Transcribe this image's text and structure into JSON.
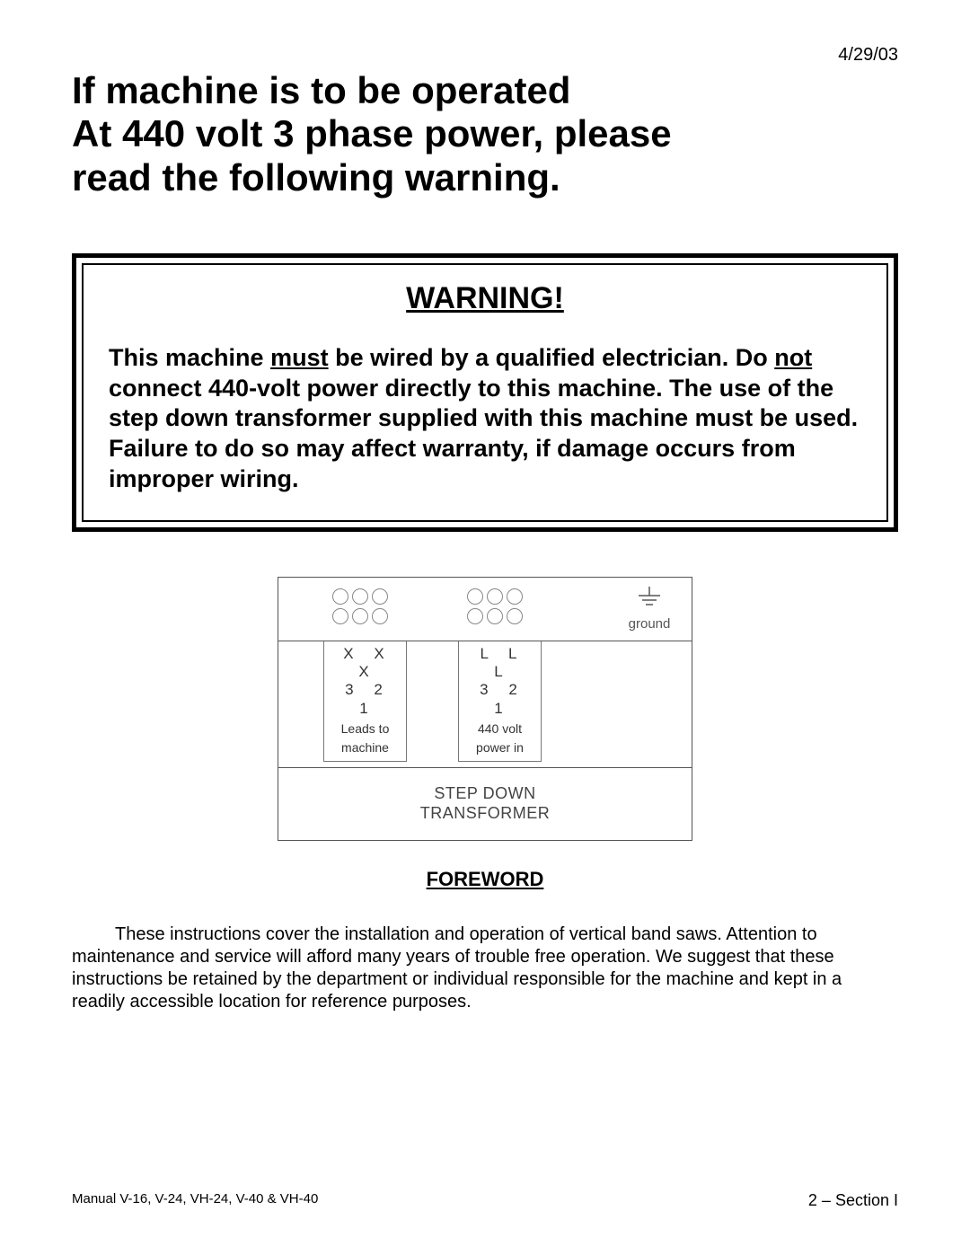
{
  "date": "4/29/03",
  "headline": {
    "line1": "If machine is to be operated",
    "line2": "At 440 volt 3 phase power, please",
    "line3": "read the following warning."
  },
  "warning": {
    "title": "WARNING!",
    "body_html": "This machine <u>must</u> be wired by a qualified electrician.  Do <u>not</u> connect 440-volt power directly to this machine.  The use of the step down transformer supplied with this machine must be used.  Failure to do so may affect warranty, if damage occurs from improper wiring."
  },
  "diagram": {
    "ground_label": "ground",
    "left_block": {
      "row1": "X  X  X",
      "row2": "3  2  1",
      "caption1": "Leads to",
      "caption2": "machine"
    },
    "right_block": {
      "row1": "L  L  L",
      "row2": "3  2  1",
      "caption1": "440 volt",
      "caption2": "power in"
    },
    "footer1": "STEP DOWN",
    "footer2": "TRANSFORMER",
    "colors": {
      "border": "#555555",
      "circle": "#888888",
      "text": "#444444"
    }
  },
  "foreword": {
    "title": "FOREWORD",
    "body": "These instructions cover the installation and operation of vertical band saws. Attention to maintenance and service will afford many years of trouble free operation.  We suggest that these instructions be retained by the department or individual responsible for the machine and kept in a readily accessible location for reference purposes."
  },
  "footer": {
    "left": "Manual V-16, V-24, VH-24, V-40 & VH-40",
    "right": "2 – Section I"
  }
}
